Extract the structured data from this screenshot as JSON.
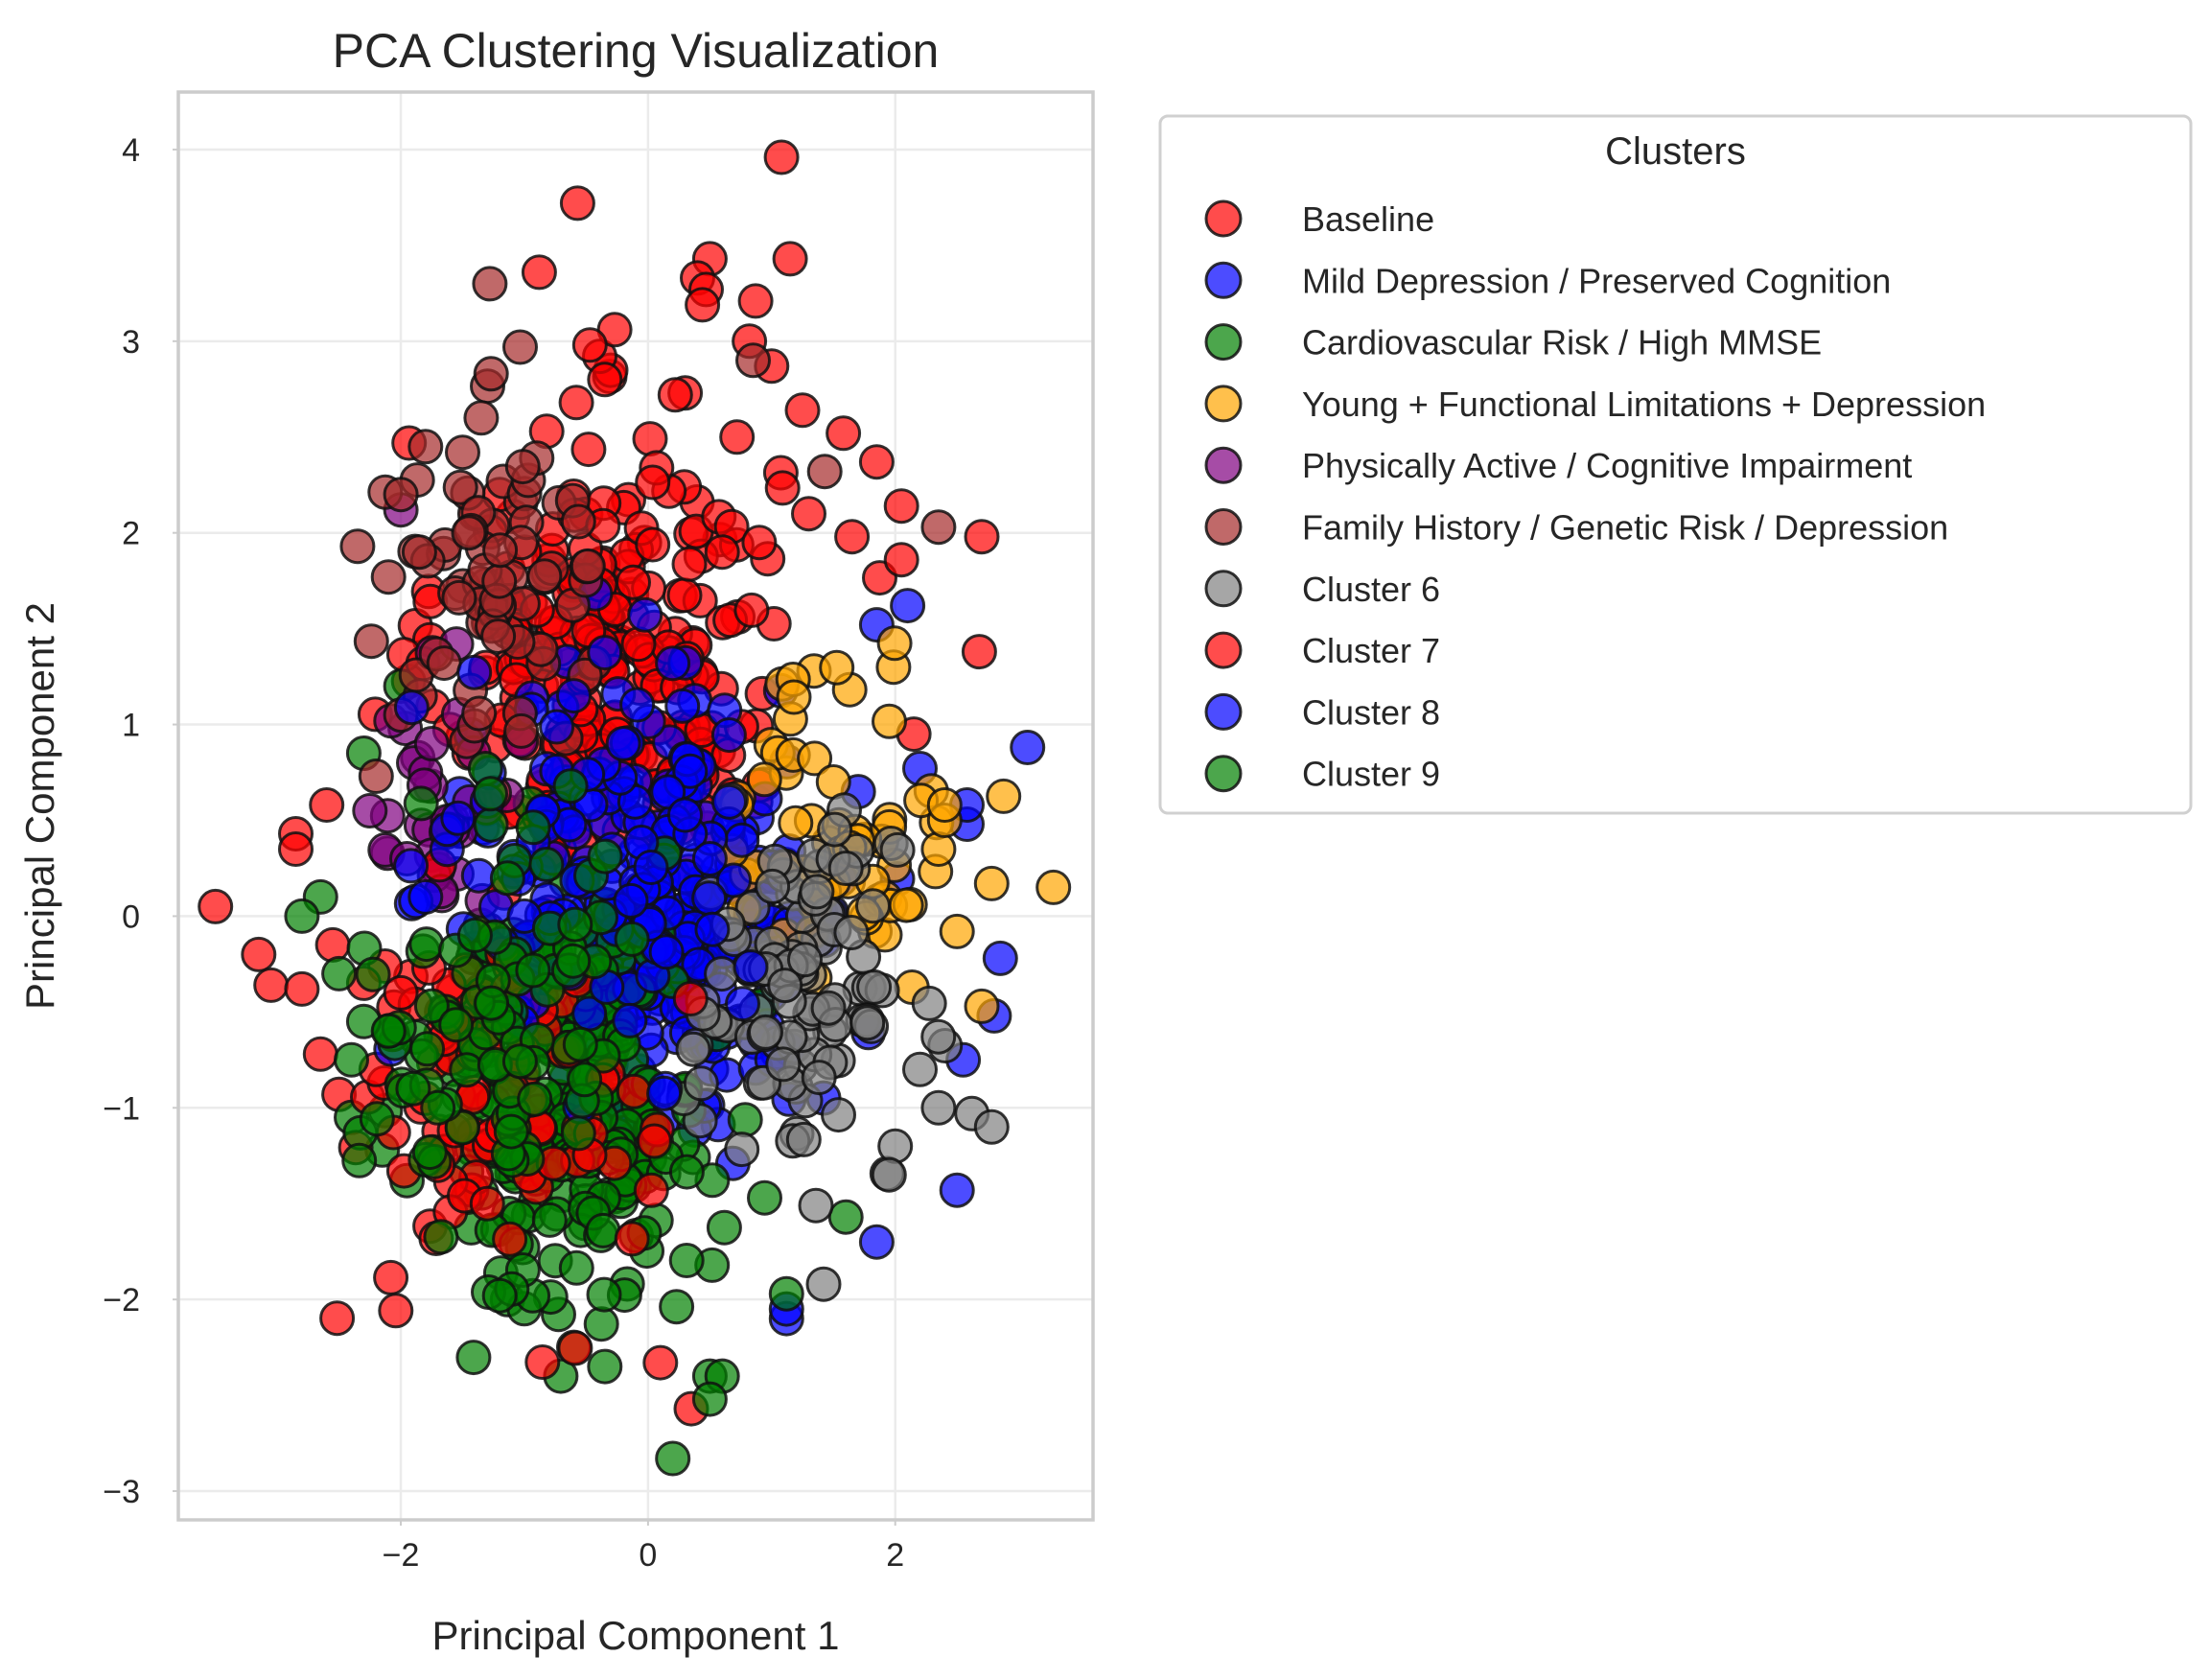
{
  "chart_data": {
    "type": "scatter",
    "title": "PCA Clustering Visualization",
    "xlabel": "Principal Component 1",
    "ylabel": "Principal Component 2",
    "xlim": [
      -3.8,
      3.6
    ],
    "ylim": [
      -3.15,
      4.3
    ],
    "xticks": [
      -2,
      0,
      2
    ],
    "yticks": [
      -3,
      -2,
      -1,
      0,
      1,
      2,
      3,
      4
    ],
    "xtick_labels": [
      "−2",
      "0",
      "2"
    ],
    "ytick_labels": [
      "−3",
      "−2",
      "−1",
      "0",
      "1",
      "2",
      "3",
      "4"
    ],
    "grid": true,
    "legend_title": "Clusters",
    "legend_placement": "outside-right-top",
    "series": [
      {
        "name": "Baseline",
        "color": "#ff0000",
        "center": [
          -0.3,
          1.3
        ],
        "spread": [
          0.9,
          0.8
        ],
        "count": 260,
        "points": [
          [
            1.08,
            3.96
          ],
          [
            -0.57,
            3.72
          ],
          [
            1.15,
            3.43
          ],
          [
            0.5,
            3.43
          ],
          [
            -0.88,
            3.36
          ],
          [
            0.4,
            3.33
          ],
          [
            0.47,
            3.27
          ],
          [
            0.87,
            3.21
          ],
          [
            0.44,
            3.19
          ],
          [
            -0.27,
            3.06
          ],
          [
            0.82,
            3.0
          ],
          [
            -0.47,
            2.98
          ],
          [
            1.0,
            2.87
          ],
          [
            0.3,
            2.73
          ],
          [
            0.22,
            2.72
          ],
          [
            -0.35,
            2.8
          ],
          [
            1.25,
            2.64
          ],
          [
            -0.58,
            2.68
          ],
          [
            0.72,
            2.5
          ],
          [
            1.58,
            2.52
          ],
          [
            1.85,
            2.37
          ],
          [
            -0.82,
            2.53
          ],
          [
            2.05,
            2.14
          ],
          [
            1.3,
            2.1
          ],
          [
            1.65,
            1.98
          ],
          [
            2.7,
            1.98
          ],
          [
            2.05,
            1.86
          ],
          [
            2.68,
            1.38
          ],
          [
            2.15,
            0.95
          ],
          [
            -3.5,
            0.05
          ],
          [
            -3.15,
            -0.2
          ],
          [
            -3.05,
            -0.36
          ],
          [
            -2.8,
            -0.38
          ],
          [
            -2.85,
            0.43
          ],
          [
            -2.85,
            0.35
          ],
          [
            -2.6,
            0.58
          ],
          [
            -2.55,
            -0.15
          ],
          [
            -2.65,
            -0.72
          ],
          [
            -2.5,
            -0.93
          ],
          [
            0.1,
            -2.33
          ],
          [
            0.35,
            -2.57
          ],
          [
            -1.4,
            2.1
          ],
          [
            -1.2,
            2.2
          ],
          [
            -1.0,
            1.9
          ],
          [
            0.9,
            1.95
          ],
          [
            0.6,
            1.9
          ]
        ]
      },
      {
        "name": "Mild Depression / Preserved Cognition",
        "color": "#0000ff",
        "center": [
          0.3,
          0.0
        ],
        "spread": [
          0.9,
          0.8
        ],
        "count": 230,
        "points": [
          [
            3.07,
            0.88
          ],
          [
            2.58,
            0.48
          ],
          [
            2.58,
            0.58
          ],
          [
            2.2,
            0.77
          ],
          [
            2.1,
            1.62
          ],
          [
            1.85,
            1.52
          ],
          [
            2.85,
            -0.22
          ],
          [
            2.8,
            -0.52
          ],
          [
            2.55,
            -0.75
          ],
          [
            2.5,
            -1.43
          ],
          [
            1.85,
            -1.7
          ],
          [
            1.12,
            -2.1
          ],
          [
            1.12,
            -2.05
          ]
        ]
      },
      {
        "name": "Cardiovascular Risk / High MMSE",
        "color": "#008000",
        "center": [
          -0.6,
          -1.0
        ],
        "spread": [
          0.7,
          0.7
        ],
        "count": 230,
        "points": [
          [
            -2.0,
            1.2
          ],
          [
            -2.3,
            0.85
          ],
          [
            0.2,
            -2.83
          ],
          [
            0.5,
            -2.4
          ],
          [
            0.6,
            -2.4
          ],
          [
            0.5,
            -2.52
          ],
          [
            -0.35,
            -2.35
          ],
          [
            -0.6,
            -2.25
          ],
          [
            -1.2,
            -1.98
          ],
          [
            -1.95,
            -1.38
          ],
          [
            -2.15,
            -1.22
          ],
          [
            -1.7,
            -1.25
          ],
          [
            -2.4,
            -1.05
          ],
          [
            1.12,
            -1.97
          ],
          [
            1.6,
            -1.57
          ],
          [
            -2.65,
            0.1
          ],
          [
            -2.8,
            0.0
          ]
        ]
      },
      {
        "name": "Young + Functional Limitations + Depression",
        "color": "#ffa500",
        "center": [
          1.6,
          0.5
        ],
        "spread": [
          0.6,
          0.6
        ],
        "count": 60,
        "points": [
          [
            3.28,
            0.15
          ],
          [
            2.78,
            0.17
          ],
          [
            2.7,
            -0.47
          ],
          [
            2.5,
            -0.08
          ],
          [
            2.35,
            0.35
          ],
          [
            2.4,
            0.5
          ],
          [
            2.4,
            0.58
          ],
          [
            1.5,
            0.7
          ]
        ]
      },
      {
        "name": "Physically Active / Cognitive Impairment",
        "color": "#800080",
        "center": [
          -1.7,
          0.6
        ],
        "spread": [
          0.4,
          0.4
        ],
        "count": 30,
        "points": [
          [
            -2.0,
            2.12
          ],
          [
            -2.25,
            0.55
          ],
          [
            -1.95,
            0.3
          ],
          [
            -1.75,
            0.9
          ],
          [
            -1.55,
            1.42
          ]
        ]
      },
      {
        "name": "Family History / Genetic Risk / Depression",
        "color": "#a52a2a",
        "center": [
          -1.2,
          1.7
        ],
        "spread": [
          0.6,
          0.6
        ],
        "count": 70,
        "points": [
          [
            -1.28,
            3.3
          ],
          [
            -1.27,
            2.83
          ],
          [
            -1.35,
            2.6
          ],
          [
            -1.5,
            2.42
          ],
          [
            -1.8,
            2.45
          ],
          [
            -2.35,
            1.93
          ],
          [
            -2.1,
            1.77
          ],
          [
            -1.85,
            1.9
          ],
          [
            -2.0,
            2.2
          ],
          [
            -1.45,
            2.0
          ],
          [
            0.85,
            2.9
          ],
          [
            1.43,
            2.32
          ],
          [
            2.35,
            2.03
          ],
          [
            -2.0,
            1.05
          ],
          [
            -1.65,
            1.32
          ],
          [
            -2.2,
            0.73
          ]
        ]
      },
      {
        "name": "Cluster 6",
        "color": "#808080",
        "center": [
          1.2,
          -0.4
        ],
        "spread": [
          0.55,
          0.55
        ],
        "count": 110,
        "points": [
          [
            2.62,
            -1.03
          ],
          [
            2.78,
            -1.1
          ],
          [
            2.35,
            -1.0
          ],
          [
            2.0,
            -1.2
          ],
          [
            1.95,
            -1.35
          ],
          [
            1.42,
            -1.92
          ],
          [
            2.2,
            -0.8
          ],
          [
            1.6,
            0.25
          ]
        ]
      },
      {
        "name": "Cluster 7",
        "color": "#ff0000",
        "center": [
          -1.2,
          -0.9
        ],
        "spread": [
          0.8,
          0.7
        ],
        "count": 90,
        "points": [
          [
            -1.7,
            -1.3
          ],
          [
            -1.5,
            -1.1
          ],
          [
            -1.3,
            -1.5
          ],
          [
            -1.1,
            -0.9
          ],
          [
            -2.2,
            -0.8
          ],
          [
            -2.0,
            -0.4
          ],
          [
            -2.3,
            -0.35
          ],
          [
            -1.8,
            -0.95
          ]
        ]
      },
      {
        "name": "Cluster 8",
        "color": "#0000ff",
        "center": [
          -0.5,
          0.2
        ],
        "spread": [
          0.85,
          0.7
        ],
        "count": 90,
        "points": [
          [
            -1.8,
            0.1
          ],
          [
            -1.3,
            0.6
          ],
          [
            -0.6,
            1.15
          ],
          [
            -0.2,
            0.9
          ],
          [
            0.5,
            0.3
          ],
          [
            -1.0,
            0.0
          ]
        ]
      },
      {
        "name": "Cluster 9",
        "color": "#008000",
        "center": [
          -1.2,
          -0.5
        ],
        "spread": [
          0.75,
          0.65
        ],
        "count": 90,
        "points": [
          [
            -2.5,
            -0.3
          ],
          [
            -2.3,
            -0.55
          ],
          [
            -2.1,
            -0.6
          ],
          [
            -1.9,
            -0.9
          ],
          [
            -1.7,
            -1.0
          ],
          [
            -2.4,
            -0.75
          ],
          [
            -1.4,
            -0.1
          ]
        ]
      }
    ]
  }
}
